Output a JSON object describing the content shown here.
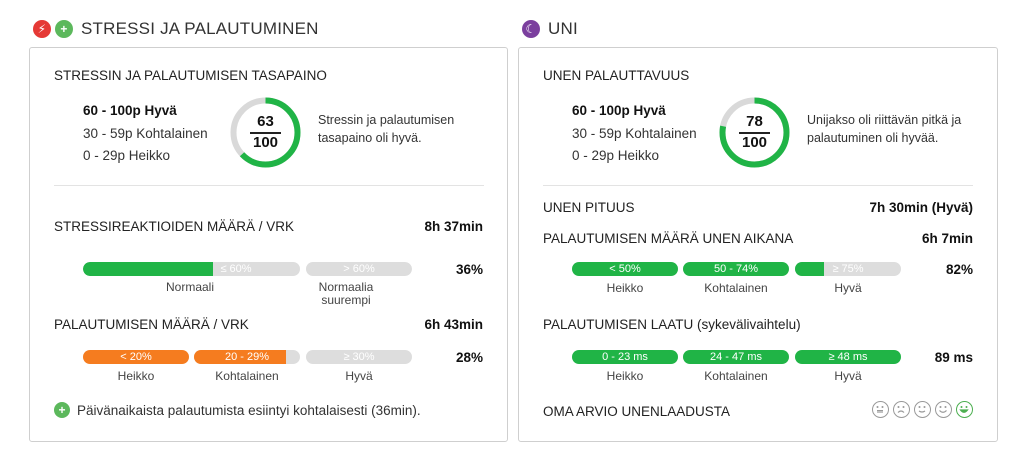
{
  "stress": {
    "section_title": "STRESSI JA PALAUTUMINEN",
    "balance": {
      "title": "STRESSIN JA PALAUTUMISEN TASAPAINO",
      "legend": [
        "60 - 100p Hyvä",
        "30 - 59p Kohtalainen",
        "0 - 29p Heikko"
      ],
      "score": "63",
      "max": "100",
      "score_fraction": 0.63,
      "description": "Stressin ja palautumisen tasapaino oli hyvä."
    },
    "stress_reactions": {
      "label": "STRESSIREAKTIOIDEN MÄÄRÄ / VRK",
      "value": "8h 37min",
      "seg1": "≤ 60%",
      "seg2": "> 60%",
      "fill_fraction": 0.6,
      "percent": "36%",
      "tick1": "Normaali",
      "tick2": "Normaalia suurempi"
    },
    "recovery": {
      "label": "PALAUTUMISEN MÄÄRÄ / VRK",
      "value": "6h 43min",
      "seg1": "< 20%",
      "seg2": "20 - 29%",
      "seg3": "≥ 30%",
      "percent": "28%",
      "tick1": "Heikko",
      "tick2": "Kohtalainen",
      "tick3": "Hyvä"
    },
    "note": "Päivänaikaista palautumista esiintyi kohtalaisesti (36min)."
  },
  "sleep": {
    "section_title": "UNI",
    "restorative": {
      "title": "UNEN PALAUTTAVUUS",
      "legend": [
        "60 - 100p Hyvä",
        "30 - 59p Kohtalainen",
        "0 - 29p Heikko"
      ],
      "score": "78",
      "max": "100",
      "score_fraction": 0.78,
      "description": "Unijakso oli riittävän pitkä ja palautuminen oli hyvää."
    },
    "duration": {
      "label": "UNEN PITUUS",
      "value": "7h 30min (Hyvä)"
    },
    "recovery_amount": {
      "label": "PALAUTUMISEN MÄÄRÄ UNEN AIKANA",
      "value": "6h 7min",
      "seg1": "< 50%",
      "seg2": "50 - 74%",
      "seg3": "≥ 75%",
      "percent": "82%",
      "tick1": "Heikko",
      "tick2": "Kohtalainen",
      "tick3": "Hyvä"
    },
    "recovery_quality": {
      "label": "PALAUTUMISEN LAATU (sykevälivaihtelu)",
      "seg1": "0 - 23 ms",
      "seg2": "24 - 47 ms",
      "seg3": "≥ 48 ms",
      "value": "89 ms",
      "tick1": "Heikko",
      "tick2": "Kohtalainen",
      "tick3": "Hyvä"
    },
    "self_rating": {
      "label": "OMA ARVIO UNENLAADUSTA",
      "selected_index": 4
    }
  },
  "colors": {
    "green": "#20b446",
    "orange": "#f57c1f",
    "grey": "#dddddd",
    "ring_grey": "#d9d9d9"
  }
}
